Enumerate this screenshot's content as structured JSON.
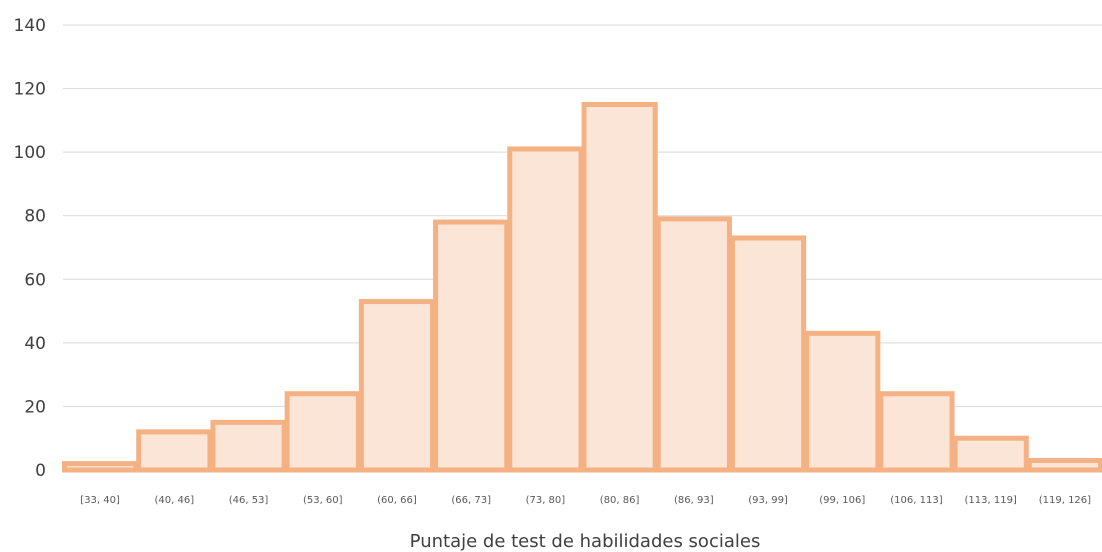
{
  "chart_data": {
    "type": "bar",
    "title": "",
    "xlabel": "Puntaje de test de habilidades sociales",
    "ylabel": "",
    "ylim": [
      0,
      140
    ],
    "yticks": [
      "0",
      "20",
      "40",
      "60",
      "80",
      "100",
      "120",
      "140"
    ],
    "grid": true,
    "categories": [
      "[33, 40]",
      "(40, 46]",
      "(46, 53]",
      "(53, 60]",
      "(60, 66]",
      "(66, 73]",
      "(73, 80]",
      "(80, 86]",
      "(86, 93]",
      "(93, 99]",
      "(99, 106]",
      "(106, 113]",
      "(113, 119]",
      "(119, 126]"
    ],
    "values": [
      2,
      12,
      15,
      24,
      53,
      78,
      101,
      115,
      79,
      73,
      43,
      24,
      10,
      3
    ],
    "colors": {
      "bar_fill": "#fbe5d6",
      "bar_stroke": "#f4b183",
      "grid": "#d9d9d9"
    }
  }
}
